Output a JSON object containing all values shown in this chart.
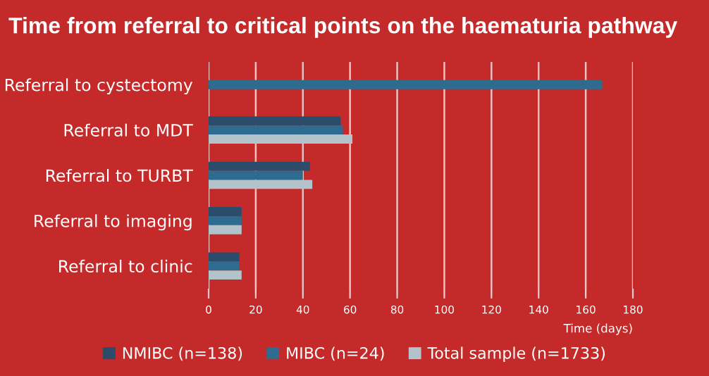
{
  "chart_data": {
    "type": "bar",
    "orientation": "horizontal",
    "title": "Time from referral to critical points on the haematuria pathway",
    "xlabel": "Time (days)",
    "categories": [
      "Referral to cystectomy",
      "Referral to MDT",
      "Referral to TURBT",
      "Referral to imaging",
      "Referral to clinic"
    ],
    "series": [
      {
        "name": "NMIBC (n=138)",
        "color": "#2b4d6b",
        "values": [
          null,
          56,
          43,
          14,
          13
        ]
      },
      {
        "name": "MIBC (n=24)",
        "color": "#2f6b8f",
        "values": [
          167,
          57,
          40,
          14,
          13
        ]
      },
      {
        "name": "Total sample (n=1733)",
        "color": "#b3c3cb",
        "values": [
          null,
          61,
          44,
          14,
          14
        ]
      }
    ],
    "xlim": [
      0,
      180
    ],
    "xticks": [
      0,
      20,
      40,
      60,
      80,
      100,
      120,
      140,
      160,
      180
    ],
    "grid": "x",
    "legend": "bottom"
  }
}
